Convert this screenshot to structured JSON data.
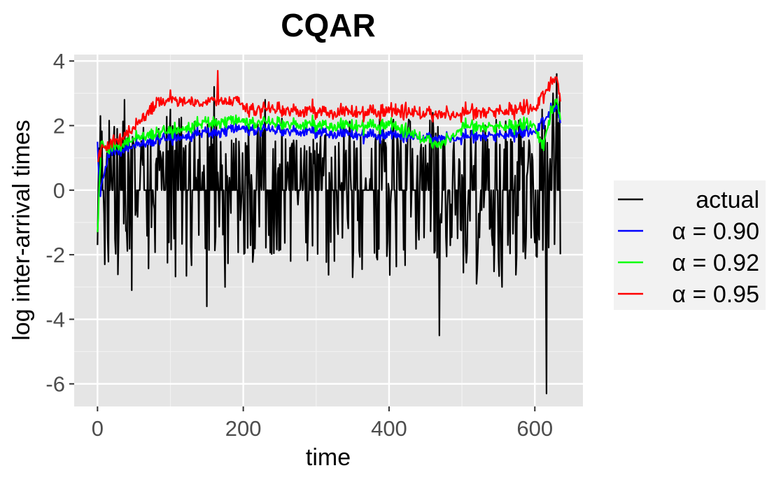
{
  "chart_data": {
    "type": "line",
    "title": "CQAR",
    "xlabel": "time",
    "ylabel": "log inter-arrival times",
    "xlim": [
      -32,
      666
    ],
    "ylim": [
      -6.7,
      4.2
    ],
    "x_ticks": [
      0,
      200,
      400,
      600
    ],
    "x_tick_labels": [
      "0",
      "200",
      "400",
      "600"
    ],
    "y_ticks": [
      -6,
      -4,
      -2,
      0,
      2,
      4
    ],
    "y_tick_labels": [
      "-6",
      "-4",
      "-2",
      "0",
      "2",
      "4"
    ],
    "grid": true,
    "legend_position": "right",
    "n_points": 636,
    "series": [
      {
        "name": "actual",
        "color": "#000000",
        "pattern": "jagged series with frequent drops below zero",
        "keypoints": [
          [
            0,
            -1.7
          ],
          [
            2,
            1.3
          ],
          [
            5,
            0.0
          ],
          [
            10,
            -2.3
          ],
          [
            37,
            2.8
          ],
          [
            47,
            -3.1
          ],
          [
            100,
            2.5
          ],
          [
            150,
            -3.6
          ],
          [
            160,
            3.2
          ],
          [
            175,
            -3.0
          ],
          [
            230,
            2.8
          ],
          [
            350,
            -2.7
          ],
          [
            460,
            2.4
          ],
          [
            469,
            -4.5
          ],
          [
            520,
            -2.9
          ],
          [
            555,
            -3.0
          ],
          [
            580,
            2.2
          ],
          [
            610,
            2.5
          ],
          [
            616,
            -6.3
          ],
          [
            625,
            3.0
          ],
          [
            630,
            3.6
          ],
          [
            634,
            2.9
          ]
        ]
      },
      {
        "name": "α = 0.90",
        "color": "#0000ff",
        "pattern": "upper band around 1.5 to 1.9",
        "keypoints": [
          [
            0,
            1.5
          ],
          [
            3,
            -0.1
          ],
          [
            15,
            1.1
          ],
          [
            50,
            1.4
          ],
          [
            100,
            1.6
          ],
          [
            160,
            1.8
          ],
          [
            200,
            1.9
          ],
          [
            300,
            1.8
          ],
          [
            400,
            1.7
          ],
          [
            500,
            1.6
          ],
          [
            600,
            1.8
          ],
          [
            628,
            2.6
          ],
          [
            634,
            2.3
          ]
        ]
      },
      {
        "name": "α = 0.92",
        "color": "#00ff00",
        "pattern": "upper band around 1.7 to 2.1",
        "keypoints": [
          [
            0,
            -1.3
          ],
          [
            5,
            1.5
          ],
          [
            15,
            1.2
          ],
          [
            50,
            1.6
          ],
          [
            100,
            1.8
          ],
          [
            160,
            2.1
          ],
          [
            200,
            2.1
          ],
          [
            300,
            2.0
          ],
          [
            400,
            2.0
          ],
          [
            470,
            1.4
          ],
          [
            500,
            1.9
          ],
          [
            600,
            2.0
          ],
          [
            610,
            1.3
          ],
          [
            628,
            2.8
          ],
          [
            634,
            2.4
          ]
        ]
      },
      {
        "name": "α = 0.95",
        "color": "#ff0000",
        "pattern": "upper band around 2.0 to 2.5",
        "keypoints": [
          [
            0,
            0.9
          ],
          [
            5,
            1.3
          ],
          [
            15,
            1.3
          ],
          [
            50,
            1.9
          ],
          [
            100,
            3.1
          ],
          [
            165,
            3.7
          ],
          [
            200,
            2.5
          ],
          [
            300,
            2.4
          ],
          [
            400,
            2.4
          ],
          [
            500,
            2.3
          ],
          [
            600,
            2.5
          ],
          [
            628,
            3.5
          ],
          [
            634,
            3.0
          ]
        ]
      }
    ]
  }
}
